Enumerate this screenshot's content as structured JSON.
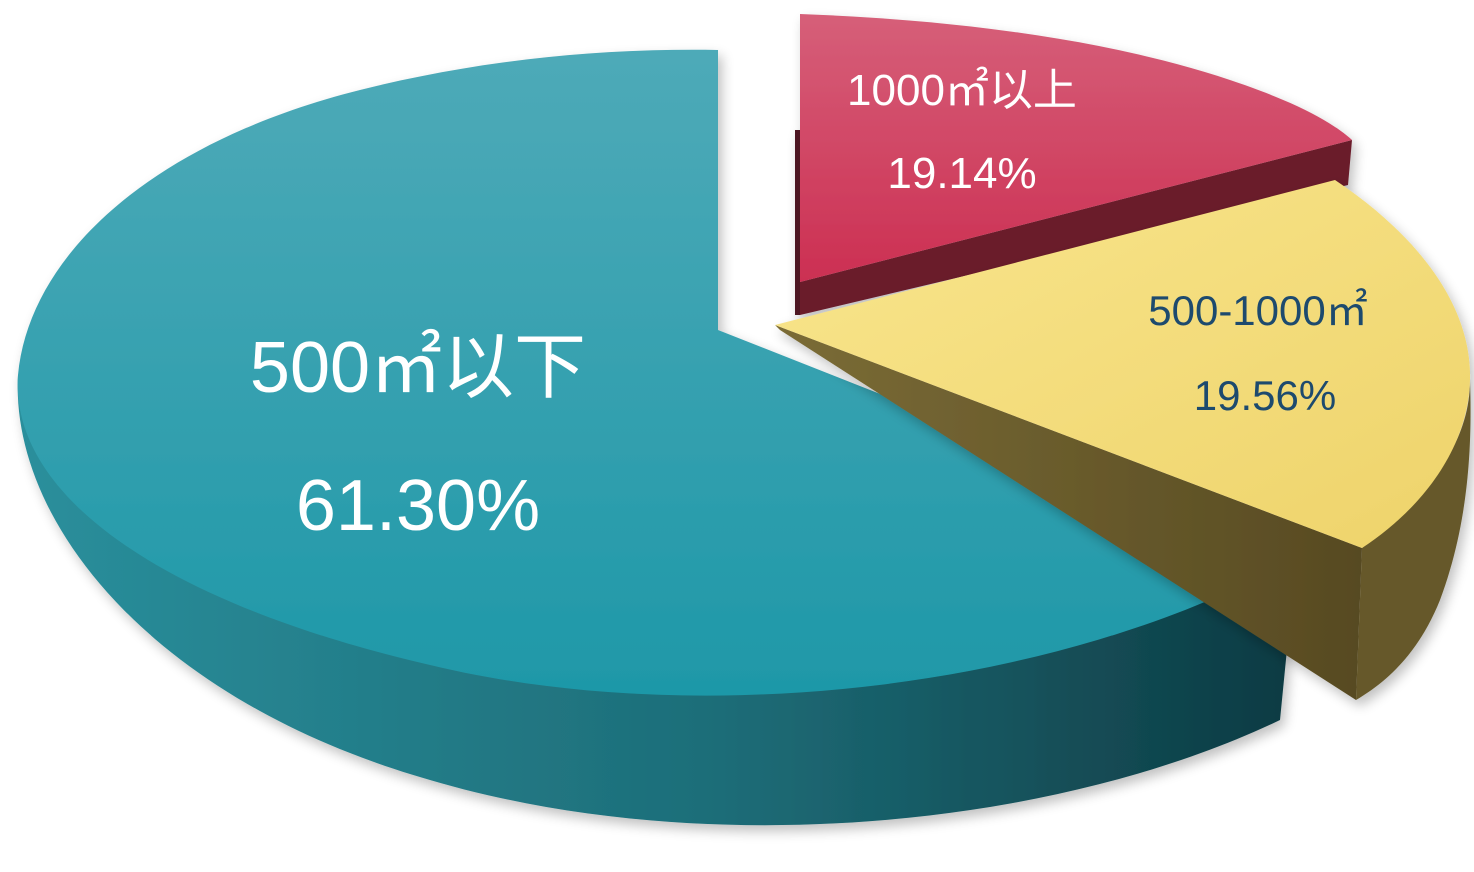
{
  "chart_data": {
    "type": "pie",
    "style": "3d-exploded",
    "title": "",
    "slices": [
      {
        "name": "500㎡以下",
        "value": 61.3,
        "label_name": "500㎡以下",
        "label_value": "61.30%",
        "color_top": "#2aa1b2",
        "color_top_light": "#4aaab9",
        "color_side_light": "#2a8f9a",
        "color_side_dark": "#0f3f47",
        "label_color": "#ffffff"
      },
      {
        "name": "1000㎡以上",
        "value": 19.14,
        "label_name": "1000㎡以上",
        "label_value": "19.14%",
        "color_top": "#cf3558",
        "color_top_light": "#d65c78",
        "color_side_light": "#7d1f33",
        "color_side_dark": "#5c1626",
        "label_color": "#ffffff"
      },
      {
        "name": "500-1000㎡",
        "value": 19.56,
        "label_name": "500-1000㎡",
        "label_value": "19.56%",
        "color_top": "#f5e07a",
        "color_top_light": "#f9e58c",
        "color_side_light": "#7d6d34",
        "color_side_dark": "#5a4d24",
        "label_color": "#1d4a6e"
      }
    ]
  }
}
